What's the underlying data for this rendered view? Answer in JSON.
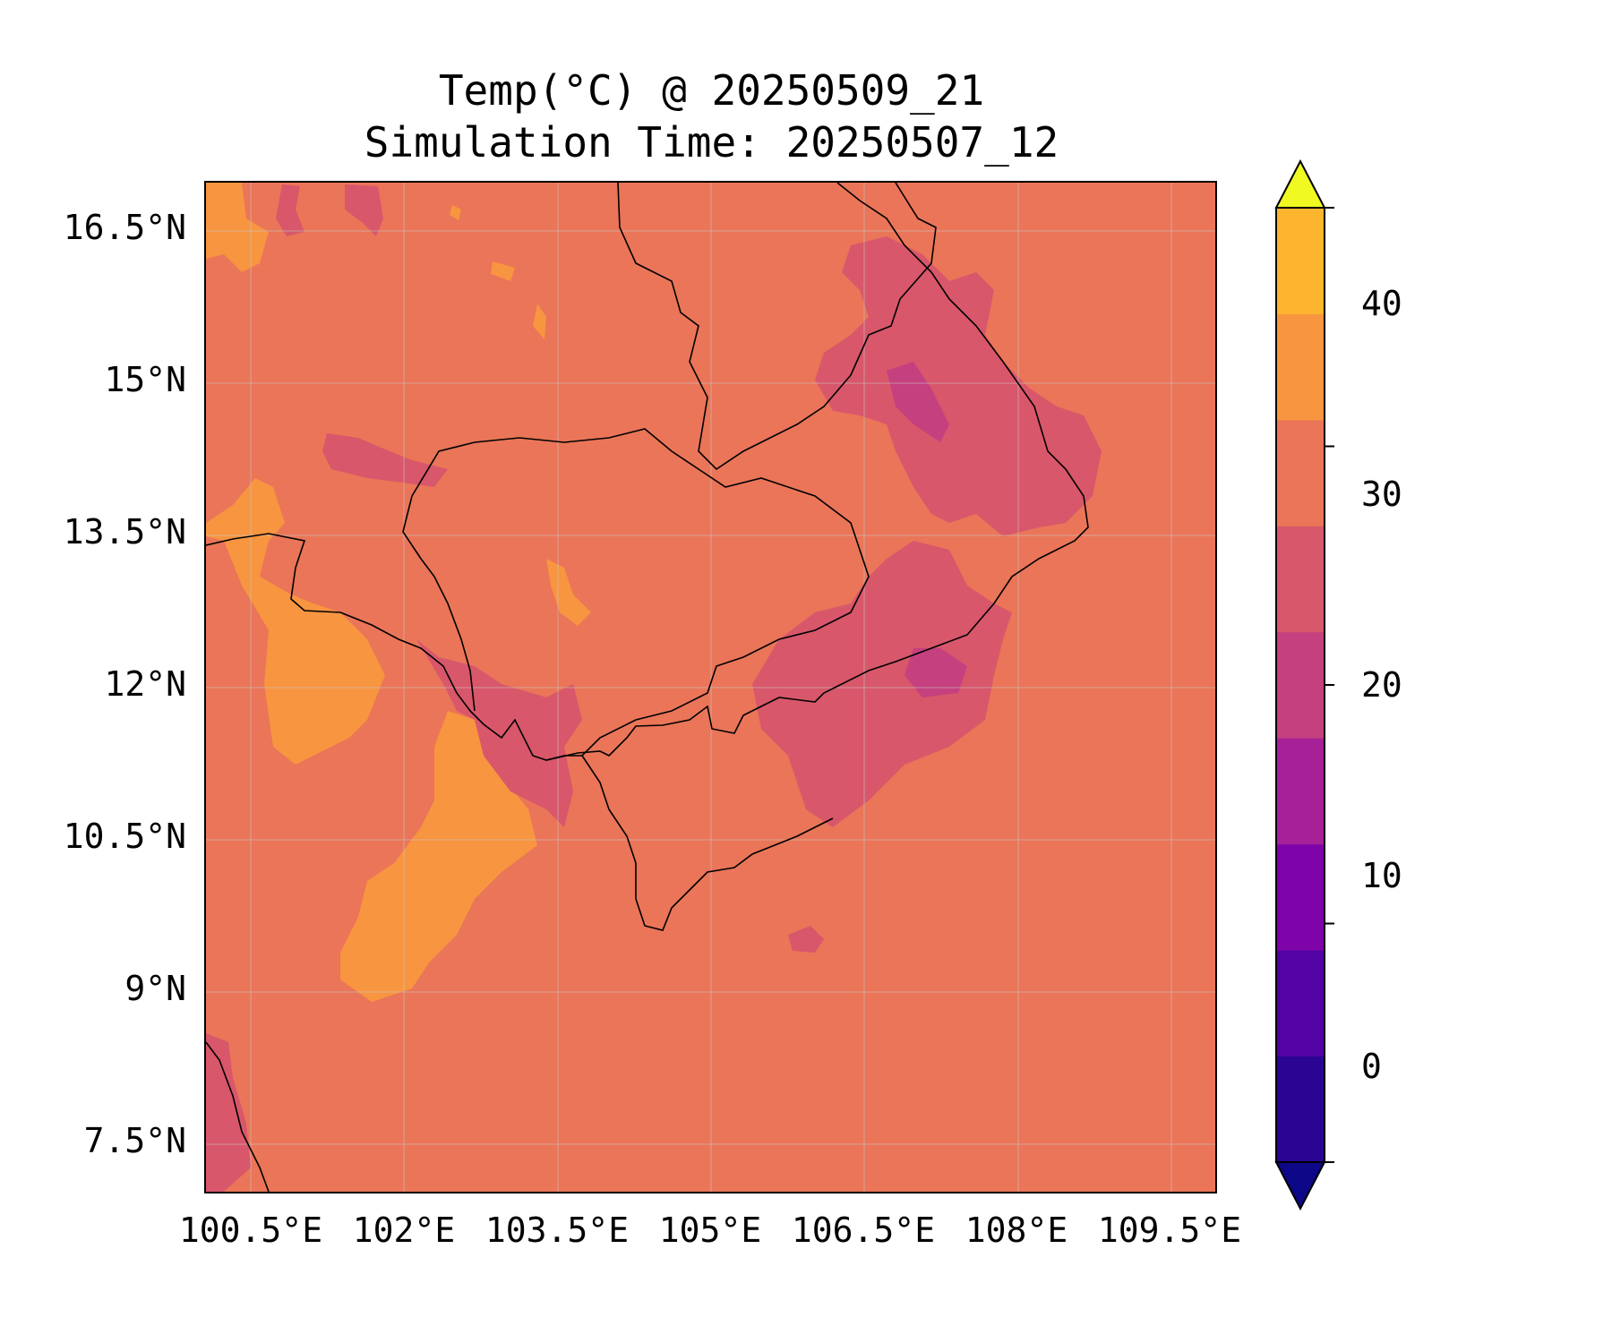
{
  "title_line1": "Temp(°C) @ 20250509_21",
  "title_line2": "Simulation Time: 20250507_12",
  "map": {
    "extent": {
      "lon_min": 99.85,
      "lon_max": 109.95,
      "lat_min": 7.05,
      "lat_max": 17.0
    },
    "lat_ticks": [
      "16.5°N",
      "15°N",
      "13.5°N",
      "12°N",
      "10.5°N",
      "9°N",
      "7.5°N"
    ],
    "lon_ticks": [
      "100.5°E",
      "102°E",
      "103.5°E",
      "105°E",
      "106.5°E",
      "108°E",
      "109.5°E"
    ],
    "background_level_color": "#ea7558",
    "gridlines": true
  },
  "colorbar": {
    "ticks": [
      "0",
      "10",
      "20",
      "30",
      "40"
    ],
    "levels": [
      -5,
      0,
      5,
      10,
      15,
      20,
      25,
      30,
      35,
      40,
      45
    ],
    "colors": [
      "#0d0887",
      "#2a0593",
      "#5302a3",
      "#7e03a8",
      "#a62098",
      "#c5407e",
      "#d8576b",
      "#ea7558",
      "#f89540",
      "#fdb42f",
      "#f0f921"
    ],
    "extend": "both"
  }
}
